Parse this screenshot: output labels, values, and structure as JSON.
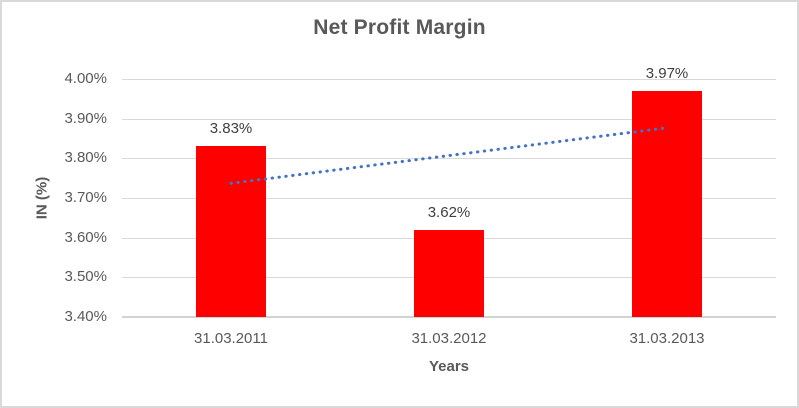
{
  "chart_data": {
    "type": "bar",
    "title": "Net Profit Margin",
    "xlabel": "Years",
    "ylabel": "IN (%)",
    "categories": [
      "31.03.2011",
      "31.03.2012",
      "31.03.2013"
    ],
    "values": [
      3.83,
      3.62,
      3.97
    ],
    "data_labels": [
      "3.83%",
      "3.62%",
      "3.97%"
    ],
    "ylim": [
      3.4,
      4.0
    ],
    "ytick_labels": [
      "4.00%",
      "3.90%",
      "3.80%",
      "3.70%",
      "3.60%",
      "3.50%",
      "3.40%"
    ],
    "grid": true,
    "legend_position": "none",
    "bar_color": "#FF0000",
    "trendline": {
      "type": "linear",
      "style": "dotted",
      "color": "#4472C4",
      "values": [
        3.737,
        3.877
      ]
    },
    "colors": {
      "title_text": "#595959",
      "axis_text": "#595959",
      "data_label_text": "#404040",
      "gridline": "#D9D9D9",
      "axis_line": "#D3D3D3",
      "border": "#D9D9D9",
      "background": "#FFFFFF"
    }
  }
}
